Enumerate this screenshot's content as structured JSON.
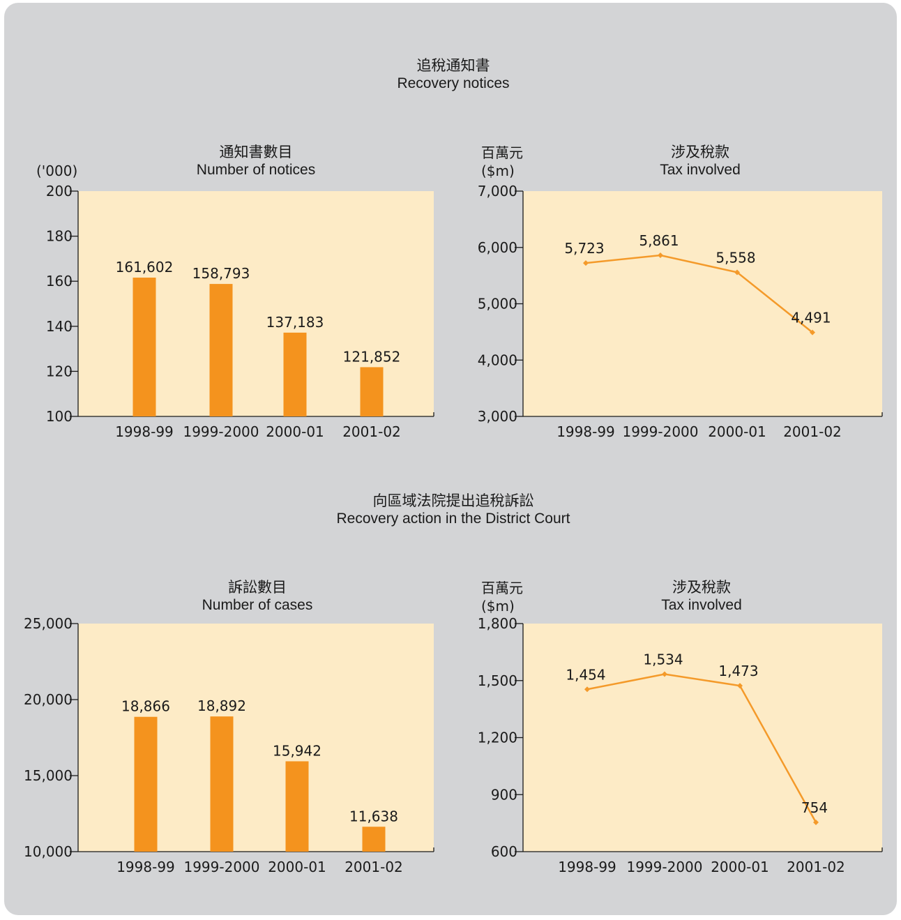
{
  "sections": [
    {
      "title_zh": "追稅通知書",
      "title_en": "Recovery notices"
    },
    {
      "title_zh": "向區域法院提出追稅訴訟",
      "title_en": "Recovery action in the District Court"
    }
  ],
  "charts": [
    {
      "title_zh": "通知書數目",
      "title_en": "Number of notices",
      "unit": "('000)",
      "unit_zh": ""
    },
    {
      "title_zh": "涉及稅款",
      "title_en": "Tax involved",
      "unit_zh": "百萬元",
      "unit": "($m)"
    },
    {
      "title_zh": "訴訟數目",
      "title_en": "Number of cases",
      "unit": "",
      "unit_zh": ""
    },
    {
      "title_zh": "涉及稅款",
      "title_en": "Tax involved",
      "unit_zh": "百萬元",
      "unit": "($m)"
    }
  ],
  "colors": {
    "panel": "#d3d4d6",
    "plot_bg": "#fdebc6",
    "bar": "#f4931e",
    "line": "#f49a2a",
    "axis": "#1a1a1a"
  },
  "chart_data": [
    {
      "type": "bar",
      "categories": [
        "1998-99",
        "1999-2000",
        "2000-01",
        "2001-02"
      ],
      "values": [
        161.602,
        158.793,
        137.183,
        121.852
      ],
      "data_labels": [
        "161,602",
        "158,793",
        "137,183",
        "121,852"
      ],
      "ylim": [
        100,
        200
      ],
      "yticks": [
        100,
        120,
        140,
        160,
        180,
        200
      ],
      "ytick_labels": [
        "100",
        "120",
        "140",
        "160",
        "180",
        "200"
      ],
      "grid": false
    },
    {
      "type": "line",
      "categories": [
        "1998-99",
        "1999-2000",
        "2000-01",
        "2001-02"
      ],
      "values": [
        5723,
        5861,
        5558,
        4491
      ],
      "data_labels": [
        "5,723",
        "5,861",
        "5,558",
        "4,491"
      ],
      "ylim": [
        3000,
        7000
      ],
      "yticks": [
        3000,
        4000,
        5000,
        6000,
        7000
      ],
      "ytick_labels": [
        "3,000",
        "4,000",
        "5,000",
        "6,000",
        "7,000"
      ],
      "grid": false
    },
    {
      "type": "bar",
      "categories": [
        "1998-99",
        "1999-2000",
        "2000-01",
        "2001-02"
      ],
      "values": [
        18866,
        18892,
        15942,
        11638
      ],
      "data_labels": [
        "18,866",
        "18,892",
        "15,942",
        "11,638"
      ],
      "ylim": [
        10000,
        25000
      ],
      "yticks": [
        10000,
        15000,
        20000,
        25000
      ],
      "ytick_labels": [
        "10,000",
        "15,000",
        "20,000",
        "25,000"
      ],
      "grid": false
    },
    {
      "type": "line",
      "categories": [
        "1998-99",
        "1999-2000",
        "2000-01",
        "2001-02"
      ],
      "values": [
        1454,
        1534,
        1473,
        754
      ],
      "data_labels": [
        "1,454",
        "1,534",
        "1,473",
        "754"
      ],
      "ylim": [
        600,
        1800
      ],
      "yticks": [
        600,
        900,
        1200,
        1500,
        1800
      ],
      "ytick_labels": [
        "600",
        "900",
        "1,200",
        "1,500",
        "1,800"
      ],
      "grid": false
    }
  ]
}
